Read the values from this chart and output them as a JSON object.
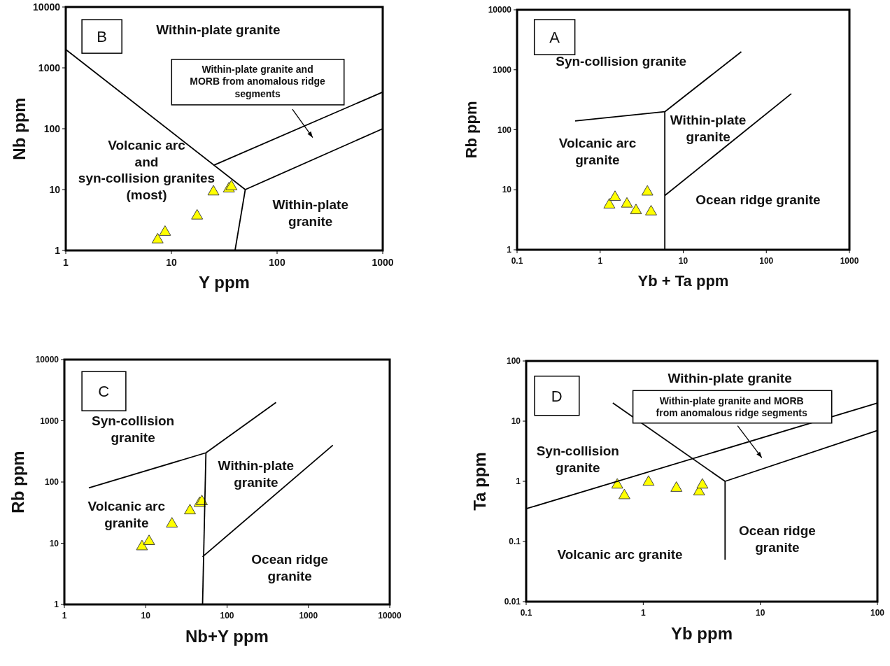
{
  "chart_data": [
    {
      "type": "scatter",
      "xlabel": "Y ppm",
      "ylabel": "Nb ppm",
      "log": "xy",
      "xlim": [
        1,
        1000
      ],
      "ylim": [
        1,
        10000
      ],
      "xticks": [
        1,
        10,
        100,
        1000
      ],
      "yticks": [
        1,
        10,
        100,
        1000,
        10000
      ],
      "annotations": [
        "B",
        "Within-plate granite",
        "Within-plate granite and\nMORB from anomalous ridge\nsegments",
        "Volcanic arc\nand\nsyn-collision granites\n(most)",
        "Within-plate\ngranite"
      ],
      "series": [
        {
          "color": "#ffff00",
          "marker": "triangle",
          "x": [
            7.4,
            8.7,
            17.5,
            25,
            35,
            37
          ],
          "values": [
            1.5,
            2.0,
            3.7,
            9.2,
            10.3,
            11.2
          ]
        },
        {
          "type": "line",
          "color": "#000000",
          "marker": "none",
          "x": [
            1,
            50,
            40
          ],
          "values": [
            2000,
            10,
            1
          ]
        },
        {
          "type": "line",
          "color": "#000000",
          "marker": "none",
          "x": [
            25,
            1000
          ],
          "values": [
            25,
            400
          ]
        },
        {
          "type": "line",
          "color": "#000000",
          "marker": "none",
          "x": [
            50,
            1000
          ],
          "values": [
            10,
            100
          ]
        }
      ]
    },
    {
      "type": "scatter",
      "xlabel": "Yb + Ta ppm",
      "ylabel": "Rb ppm",
      "log": "xy",
      "xlim": [
        0.1,
        1000
      ],
      "ylim": [
        1,
        10000
      ],
      "xticks": [
        0.1,
        1,
        10,
        100,
        1000
      ],
      "yticks": [
        1,
        10,
        100,
        1000,
        10000
      ],
      "annotations": [
        "A",
        "Syn-collision granite",
        "Within-plate\ngranite",
        "Volcanic arc\ngranite",
        "Ocean ridge granite"
      ],
      "series": [
        {
          "color": "#ffff00",
          "marker": "triangle",
          "x": [
            1.29,
            1.51,
            2.1,
            2.7,
            3.7,
            4.1
          ],
          "values": [
            5.6,
            7.5,
            5.8,
            4.5,
            9.2,
            4.3
          ]
        },
        {
          "type": "line",
          "color": "#000000",
          "marker": "none",
          "x": [
            0.5,
            6,
            50
          ],
          "values": [
            140,
            200,
            2000
          ]
        },
        {
          "type": "line",
          "color": "#000000",
          "marker": "none",
          "x": [
            6,
            6
          ],
          "values": [
            1,
            200
          ]
        },
        {
          "type": "line",
          "color": "#000000",
          "marker": "none",
          "x": [
            6,
            200
          ],
          "values": [
            8,
            400
          ]
        }
      ]
    },
    {
      "type": "scatter",
      "xlabel": "Nb+Y ppm",
      "ylabel": "Rb ppm",
      "log": "xy",
      "xlim": [
        1,
        10000
      ],
      "ylim": [
        1,
        10000
      ],
      "xticks": [
        1,
        10,
        100,
        1000,
        10000
      ],
      "yticks": [
        1,
        10,
        100,
        1000,
        10000
      ],
      "annotations": [
        "C",
        "Syn-collision\ngranite",
        "Within-plate\ngranite",
        "Volcanic arc\ngranite",
        "Ocean ridge\ngranite"
      ],
      "series": [
        {
          "color": "#ffff00",
          "marker": "triangle",
          "x": [
            9,
            11,
            21,
            35,
            46,
            49
          ],
          "values": [
            8.8,
            10.7,
            20.7,
            34,
            45,
            48
          ]
        },
        {
          "type": "line",
          "color": "#000000",
          "marker": "none",
          "x": [
            2,
            55,
            400
          ],
          "values": [
            80,
            300,
            2000
          ]
        },
        {
          "type": "line",
          "color": "#000000",
          "marker": "none",
          "x": [
            50,
            55
          ],
          "values": [
            1,
            300
          ]
        },
        {
          "type": "line",
          "color": "#000000",
          "marker": "none",
          "x": [
            50,
            2000
          ],
          "values": [
            6,
            400
          ]
        }
      ]
    },
    {
      "type": "scatter",
      "xlabel": "Yb ppm",
      "ylabel": "Ta ppm",
      "log": "xy",
      "xlim": [
        0.1,
        100
      ],
      "ylim": [
        0.01,
        100
      ],
      "xticks": [
        0.1,
        1,
        10,
        100
      ],
      "yticks": [
        0.01,
        0.1,
        1,
        10,
        100
      ],
      "annotations": [
        "D",
        "Within-plate granite",
        "Within-plate granite and MORB\nfrom anomalous ridge segments",
        "Syn-collision\ngranite",
        "Volcanic arc granite",
        "Ocean ridge\ngranite"
      ],
      "series": [
        {
          "color": "#ffff00",
          "marker": "triangle",
          "x": [
            0.6,
            0.69,
            1.11,
            1.92,
            3.0,
            3.2
          ],
          "values": [
            0.87,
            0.58,
            0.97,
            0.77,
            0.67,
            0.87
          ]
        },
        {
          "type": "line",
          "color": "#000000",
          "marker": "none",
          "x": [
            0.1,
            100
          ],
          "values": [
            0.35,
            20
          ]
        },
        {
          "type": "line",
          "color": "#000000",
          "marker": "none",
          "x": [
            0.55,
            5,
            5
          ],
          "values": [
            20,
            1,
            0.05
          ]
        },
        {
          "type": "line",
          "color": "#000000",
          "marker": "none",
          "x": [
            5,
            100
          ],
          "values": [
            1,
            7
          ]
        }
      ]
    }
  ]
}
